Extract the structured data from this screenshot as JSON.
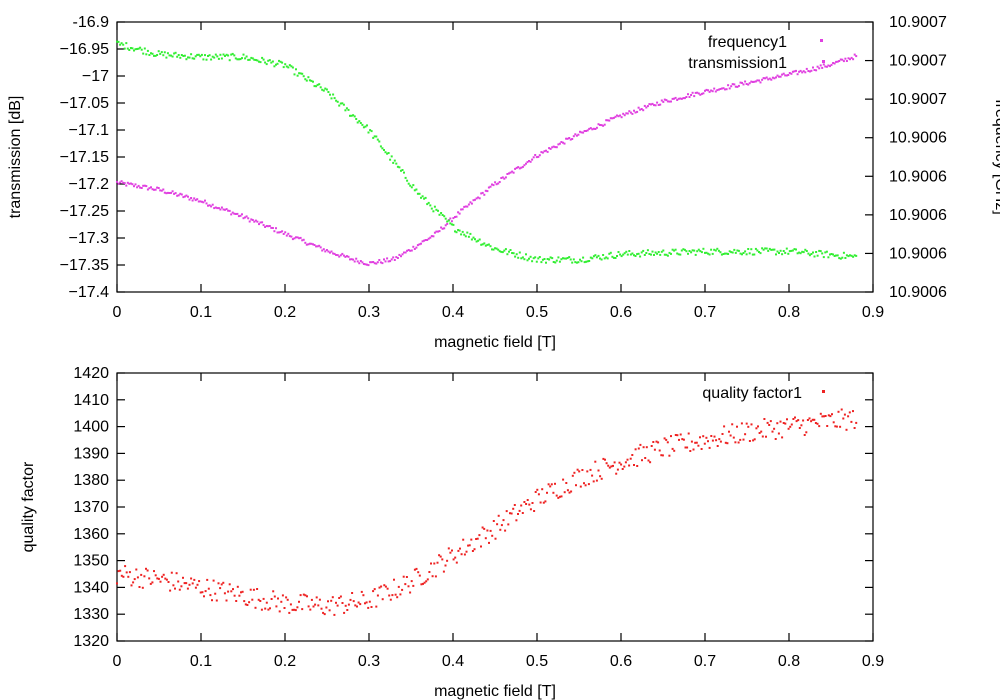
{
  "chart_data": [
    {
      "type": "scatter",
      "xlabel": "magnetic field [T]",
      "ylabel": "transmission [dB]",
      "y2label": "frequency [GHz]",
      "xlim": [
        0,
        0.9
      ],
      "ylim": [
        -17.4,
        -16.9
      ],
      "y2lim": [
        10.90055,
        10.90074
      ],
      "xticks": [
        "0",
        "0.1",
        "0.2",
        "0.3",
        "0.4",
        "0.5",
        "0.6",
        "0.7",
        "0.8",
        "0.9"
      ],
      "yticks": [
        "-16.9",
        "−16.95",
        "−17",
        "−17.05",
        "−17.1",
        "−17.15",
        "−17.2",
        "−17.25",
        "−17.3",
        "−17.35",
        "−17.4"
      ],
      "y2ticks": [
        "10.9007",
        "10.9007",
        "10.9007",
        "10.9006",
        "10.9006",
        "10.9006",
        "10.9006",
        "10.9006"
      ],
      "legend": [
        "frequency1",
        "transmission1"
      ],
      "series": [
        {
          "name": "frequency1",
          "axis": "y2",
          "color": "#e040e0",
          "x": [
            0,
            0.05,
            0.1,
            0.15,
            0.2,
            0.25,
            0.28,
            0.3,
            0.33,
            0.35,
            0.38,
            0.4,
            0.45,
            0.5,
            0.55,
            0.6,
            0.65,
            0.7,
            0.75,
            0.8,
            0.85,
            0.88
          ],
          "y": [
            10.900627,
            10.900622,
            10.900614,
            10.900603,
            10.900591,
            10.900579,
            10.900573,
            10.90057,
            10.900573,
            10.90058,
            10.900591,
            10.900602,
            10.900626,
            10.900646,
            10.900661,
            10.900674,
            10.900684,
            10.900691,
            10.900697,
            10.900703,
            10.90071,
            10.900716
          ]
        },
        {
          "name": "transmission1",
          "axis": "y",
          "color": "#33ee33",
          "x": [
            0,
            0.05,
            0.1,
            0.15,
            0.2,
            0.25,
            0.3,
            0.33,
            0.36,
            0.4,
            0.45,
            0.5,
            0.55,
            0.6,
            0.7,
            0.8,
            0.88
          ],
          "y": [
            -16.94,
            -16.96,
            -16.965,
            -16.965,
            -16.98,
            -17.03,
            -17.1,
            -17.16,
            -17.22,
            -17.28,
            -17.32,
            -17.34,
            -17.34,
            -17.33,
            -17.325,
            -17.325,
            -17.335
          ]
        }
      ]
    },
    {
      "type": "scatter",
      "xlabel": "magnetic field [T]",
      "ylabel": "quality factor",
      "xlim": [
        0,
        0.9
      ],
      "ylim": [
        1320,
        1420
      ],
      "xticks": [
        "0",
        "0.1",
        "0.2",
        "0.3",
        "0.4",
        "0.5",
        "0.6",
        "0.7",
        "0.8",
        "0.9"
      ],
      "yticks": [
        "1420",
        "1410",
        "1400",
        "1390",
        "1380",
        "1370",
        "1360",
        "1350",
        "1340",
        "1330",
        "1320"
      ],
      "legend": [
        "quality factor1"
      ],
      "series": [
        {
          "name": "quality factor1",
          "color": "#ee2222",
          "x": [
            0,
            0.05,
            0.1,
            0.15,
            0.2,
            0.25,
            0.3,
            0.35,
            0.4,
            0.45,
            0.5,
            0.55,
            0.6,
            0.65,
            0.7,
            0.75,
            0.8,
            0.85,
            0.88
          ],
          "y": [
            1345,
            1343,
            1340,
            1337,
            1334,
            1333,
            1335,
            1342,
            1352,
            1362,
            1373,
            1381,
            1387,
            1392,
            1395,
            1398,
            1400,
            1402,
            1403
          ]
        }
      ]
    }
  ]
}
